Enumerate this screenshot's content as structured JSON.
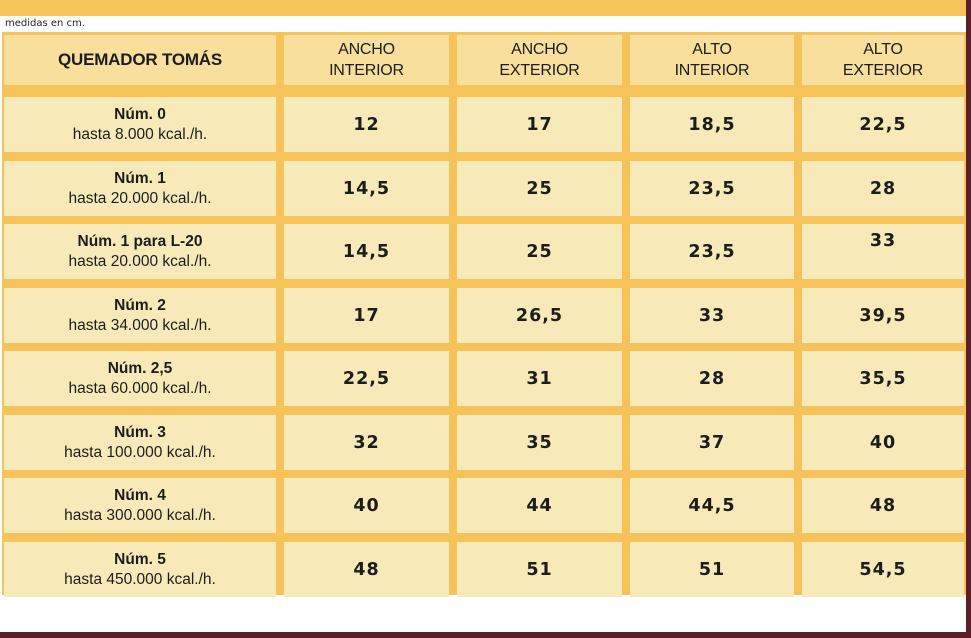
{
  "note": "medidas en cm.",
  "header": {
    "first": "QUEMADOR TOMÁS",
    "cols": [
      [
        "ANCHO",
        "INTERIOR"
      ],
      [
        "ANCHO",
        "EXTERIOR"
      ],
      [
        "ALTO",
        "INTERIOR"
      ],
      [
        "ALTO",
        "EXTERIOR"
      ]
    ]
  },
  "rows": [
    {
      "name": "Núm. 0",
      "capacity": "hasta 8.000 kcal./h.",
      "values": [
        "12",
        "17",
        "18,5",
        "22,5"
      ]
    },
    {
      "name": "Núm. 1",
      "capacity": "hasta 20.000 kcal./h.",
      "values": [
        "14,5",
        "25",
        "23,5",
        "28"
      ]
    },
    {
      "name": "Núm. 1 para L-20",
      "capacity": "hasta 20.000 kcal./h.",
      "values": [
        "14,5",
        "25",
        "23,5",
        "33"
      ]
    },
    {
      "name": "Núm. 2",
      "capacity": "hasta 34.000 kcal./h.",
      "values": [
        "17",
        "26,5",
        "33",
        "39,5"
      ]
    },
    {
      "name": "Núm. 2,5",
      "capacity": "hasta 60.000 kcal./h.",
      "values": [
        "22,5",
        "31",
        "28",
        "35,5"
      ]
    },
    {
      "name": "Núm. 3",
      "capacity": "hasta 100.000 kcal./h.",
      "values": [
        "32",
        "35",
        "37",
        "40"
      ]
    },
    {
      "name": "Núm. 4",
      "capacity": "hasta 300.000 kcal./h.",
      "values": [
        "40",
        "44",
        "44,5",
        "48"
      ]
    },
    {
      "name": "Núm. 5",
      "capacity": "hasta 450.000 kcal./h.",
      "values": [
        "48",
        "51",
        "51",
        "54,5"
      ]
    }
  ],
  "colors": {
    "grid": "#f6c25a",
    "header_cell": "#f8e09c",
    "body_cell": "#f8eab8",
    "outer": "#5a1e26"
  }
}
